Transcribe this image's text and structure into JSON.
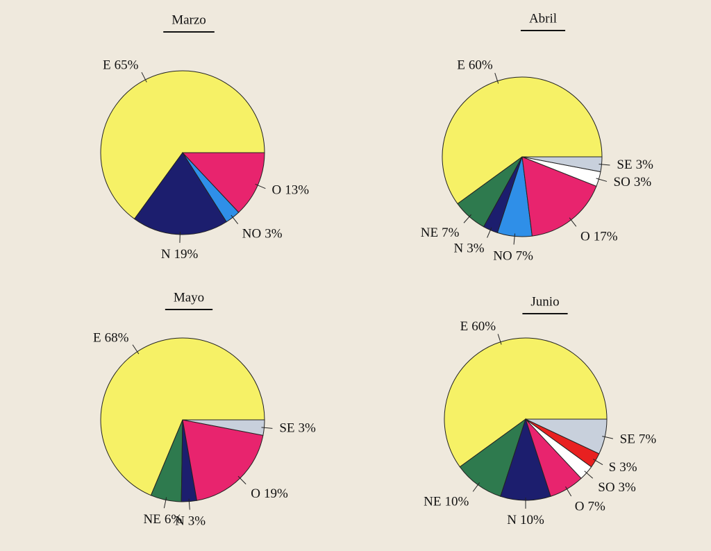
{
  "chart_data": [
    {
      "type": "pie",
      "title": "Marzo",
      "categories": [
        "E",
        "N",
        "NO",
        "O"
      ],
      "values": [
        65,
        19,
        3,
        13
      ],
      "value_labels": [
        "65%",
        "19%",
        "3%",
        "13%"
      ],
      "colors": [
        "#f6f166",
        "#1c1e6e",
        "#2f8fe8",
        "#e8246e"
      ]
    },
    {
      "type": "pie",
      "title": "Abril",
      "categories": [
        "E",
        "NE",
        "N",
        "NO",
        "O",
        "SO",
        "SE"
      ],
      "values": [
        60,
        7,
        3,
        7,
        17,
        3,
        3
      ],
      "value_labels": [
        "60%",
        "7%",
        "3%",
        "7%",
        "17%",
        "3%",
        "3%"
      ],
      "colors": [
        "#f6f166",
        "#2e7a4e",
        "#1c1e6e",
        "#2f8fe8",
        "#e8246e",
        "#ffffff",
        "#c8d0dc"
      ]
    },
    {
      "type": "pie",
      "title": "Mayo",
      "categories": [
        "E",
        "NE",
        "N",
        "O",
        "SE"
      ],
      "values": [
        68,
        6,
        3,
        19,
        3
      ],
      "value_labels": [
        "68%",
        "6%",
        "3%",
        "19%",
        "3%"
      ],
      "colors": [
        "#f6f166",
        "#2e7a4e",
        "#1c1e6e",
        "#e8246e",
        "#c8d0dc"
      ]
    },
    {
      "type": "pie",
      "title": "Junio",
      "categories": [
        "E",
        "NE",
        "N",
        "O",
        "SO",
        "S",
        "SE"
      ],
      "values": [
        60,
        10,
        10,
        7,
        3,
        3,
        7
      ],
      "value_labels": [
        "60%",
        "10%",
        "10%",
        "7%",
        "3%",
        "3%",
        "7%"
      ],
      "colors": [
        "#f6f166",
        "#2e7a4e",
        "#1c1e6e",
        "#e8246e",
        "#ffffff",
        "#e82020",
        "#c8d0dc"
      ]
    }
  ]
}
